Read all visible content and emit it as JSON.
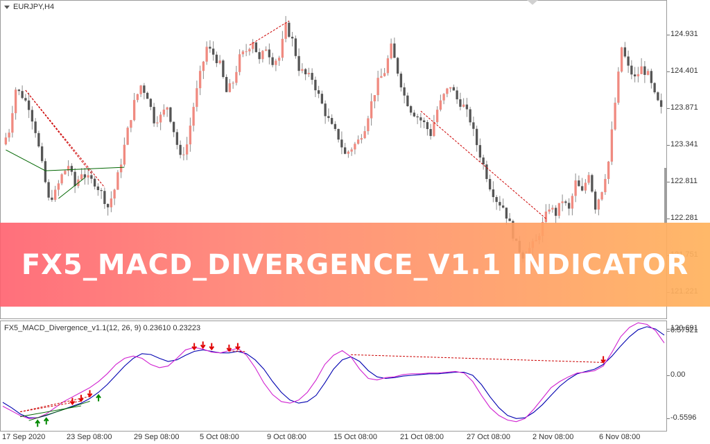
{
  "chart_window": {
    "symbol_label": "EURJPY,H4",
    "indicator_label": "FX5_MACD_Divergence_v1.1(12, 26, 9) 0.23610 0.23223"
  },
  "banner": {
    "text": "FX5_MACD_DIVERGENCE_V1.1 INDICATOR"
  },
  "price_axis": {
    "labels": [
      "124.931",
      "124.401",
      "123.871",
      "123.341",
      "122.811",
      "122.281",
      "121.751",
      "121.221",
      "120.691"
    ]
  },
  "macd_axis": {
    "labels": [
      "0.57521",
      "0.00",
      "-0.5596"
    ]
  },
  "time_axis": {
    "labels": [
      "17 Sep 2020",
      "23 Sep 08:00",
      "29 Sep 08:00",
      "5 Oct 08:00",
      "9 Oct 08:00",
      "15 Oct 08:00",
      "21 Oct 08:00",
      "27 Oct 08:00",
      "2 Nov 08:00",
      "6 Nov 08:00"
    ]
  },
  "colors": {
    "bull_candle": "#f08a80",
    "bear_candle": "#555555",
    "macd_line": "#0000b0",
    "signal_line": "#d020d0",
    "bear_divergence": "#cc0000",
    "bull_divergence": "#006600",
    "current_price_marker": "#9e9e9e"
  },
  "chart_data": [
    {
      "type": "candlestick",
      "title": "EURJPY,H4",
      "ylim": [
        120.3,
        125.3
      ],
      "close_path": [
        123.35,
        123.55,
        124.15,
        124.05,
        123.9,
        123.55,
        123.05,
        122.55,
        122.65,
        122.9,
        123.05,
        122.75,
        122.95,
        122.85,
        122.8,
        122.65,
        122.45,
        122.7,
        123.1,
        123.55,
        123.95,
        124.2,
        124.05,
        123.7,
        123.75,
        123.9,
        123.55,
        123.15,
        123.35,
        123.9,
        124.35,
        124.75,
        124.65,
        124.5,
        124.1,
        124.25,
        124.6,
        124.7,
        124.85,
        124.55,
        124.75,
        124.55,
        124.6,
        125.05,
        124.85,
        124.45,
        124.35,
        124.3,
        124.05,
        123.8,
        123.6,
        123.45,
        123.2,
        123.3,
        123.4,
        123.6,
        123.95,
        124.25,
        124.4,
        124.75,
        124.4,
        124.05,
        123.85,
        123.75,
        123.65,
        123.5,
        123.85,
        124.05,
        124.2,
        124.0,
        123.9,
        123.7,
        123.35,
        123.05,
        122.75,
        122.55,
        122.45,
        122.2,
        121.9,
        121.75,
        121.85,
        121.95,
        122.2,
        122.45,
        122.35,
        122.55,
        122.4,
        122.8,
        122.65,
        122.95,
        122.45,
        122.7,
        123.1,
        123.95,
        124.75,
        124.45,
        124.3,
        124.45,
        124.35,
        124.05,
        123.85
      ],
      "bearish_divergence_lines": [
        [
          3,
          13
        ],
        [
          3,
          15
        ],
        [
          37,
          43
        ],
        [
          63,
          82
        ]
      ],
      "bullish_divergence_lines": [
        [
          0,
          6
        ],
        [
          6,
          18
        ],
        [
          8,
          12
        ]
      ]
    },
    {
      "type": "line",
      "title": "FX5_MACD_Divergence_v1.1(12, 26, 9)",
      "ylim": [
        -0.62,
        0.62
      ],
      "series": [
        {
          "name": "0.23610",
          "values": [
            -0.35,
            -0.42,
            -0.5,
            -0.55,
            -0.55,
            -0.52,
            -0.48,
            -0.44,
            -0.4,
            -0.36,
            -0.3,
            -0.22,
            -0.12,
            0.0,
            0.12,
            0.22,
            0.28,
            0.27,
            0.22,
            0.18,
            0.2,
            0.26,
            0.31,
            0.33,
            0.31,
            0.29,
            0.29,
            0.31,
            0.28,
            0.2,
            0.08,
            -0.08,
            -0.22,
            -0.32,
            -0.36,
            -0.34,
            -0.26,
            -0.1,
            0.08,
            0.2,
            0.24,
            0.18,
            0.06,
            -0.02,
            -0.04,
            -0.03,
            -0.01,
            0.0,
            0.01,
            0.02,
            0.02,
            0.03,
            0.04,
            0.04,
            0.0,
            -0.12,
            -0.28,
            -0.42,
            -0.52,
            -0.56,
            -0.55,
            -0.48,
            -0.38,
            -0.26,
            -0.14,
            -0.05,
            0.02,
            0.05,
            0.08,
            0.14,
            0.25,
            0.38,
            0.5,
            0.59,
            0.63,
            0.6,
            0.52
          ]
        },
        {
          "name": "0.23223",
          "values": [
            -0.4,
            -0.46,
            -0.52,
            -0.56,
            -0.55,
            -0.5,
            -0.42,
            -0.34,
            -0.28,
            -0.22,
            -0.16,
            -0.08,
            0.02,
            0.14,
            0.22,
            0.25,
            0.22,
            0.14,
            0.1,
            0.12,
            0.22,
            0.33,
            0.36,
            0.34,
            0.3,
            0.29,
            0.32,
            0.35,
            0.26,
            0.1,
            -0.1,
            -0.25,
            -0.34,
            -0.36,
            -0.32,
            -0.22,
            -0.06,
            0.14,
            0.26,
            0.32,
            0.24,
            0.08,
            -0.04,
            -0.06,
            -0.03,
            -0.02,
            0.01,
            0.02,
            0.02,
            0.03,
            0.03,
            0.04,
            0.05,
            0.03,
            -0.08,
            -0.26,
            -0.42,
            -0.52,
            -0.58,
            -0.6,
            -0.56,
            -0.44,
            -0.3,
            -0.16,
            -0.08,
            -0.02,
            0.03,
            0.04,
            0.06,
            0.12,
            0.3,
            0.5,
            0.62,
            0.68,
            0.66,
            0.58,
            0.42
          ]
        }
      ],
      "bearish_divergence_lines": [
        [
          2,
          9
        ],
        [
          2,
          10
        ],
        [
          26,
          28
        ],
        [
          40,
          69
        ]
      ],
      "bullish_divergence_lines": [
        [
          2,
          9
        ],
        [
          3,
          10
        ]
      ],
      "bear_arrows_x": [
        8,
        9,
        10,
        22,
        23,
        24,
        26,
        27,
        69
      ],
      "bull_arrows_x": [
        4,
        5,
        11
      ]
    }
  ]
}
